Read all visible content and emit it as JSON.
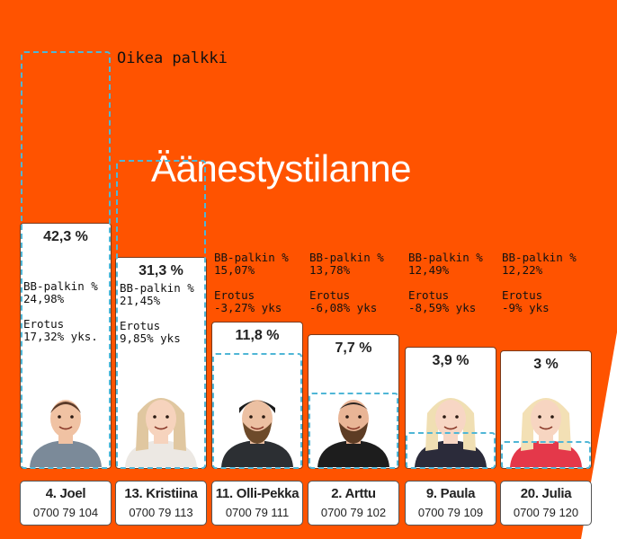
{
  "title": "Äänestystilanne",
  "annotation_label": "Oikea palkki",
  "ann_prefix": "BB-palkin %",
  "ann_diff": "Erotus",
  "colors": {
    "background": "#ff5300",
    "bar": "#ffffff",
    "dashed": "#4fb6d6"
  },
  "chart_data": {
    "type": "bar",
    "categories": [
      "4. Joel",
      "13. Kristiina",
      "11. Olli-Pekka",
      "2. Arttu",
      "9. Paula",
      "20. Julia"
    ],
    "series": [
      {
        "values": [
          42.3,
          31.3,
          11.8,
          7.7,
          3.9,
          3.0
        ]
      },
      {
        "name": "Oikea palkki",
        "values": [
          24.98,
          21.45,
          15.07,
          13.78,
          12.49,
          12.22
        ]
      }
    ],
    "ylim": [
      0,
      42.3
    ],
    "labels": [
      "42,3 %",
      "31,3 %",
      "11,8 %",
      "7,7 %",
      "3,9 %",
      "3 %"
    ]
  },
  "contestants": [
    {
      "name": "4. Joel",
      "phone": "0700 79 104",
      "pct": "42,3 %",
      "bb": "24,98%",
      "diff": "17,32% yks."
    },
    {
      "name": "13. Kristiina",
      "phone": "0700 79 113",
      "pct": "31,3 %",
      "bb": "21,45%",
      "diff": "9,85% yks"
    },
    {
      "name": "11. Olli-Pekka",
      "phone": "0700 79 111",
      "pct": "11,8 %",
      "bb": "15,07%",
      "diff": "-3,27% yks"
    },
    {
      "name": "2. Arttu",
      "phone": "0700 79 102",
      "pct": "7,7 %",
      "bb": "13,78%",
      "diff": "-6,08% yks"
    },
    {
      "name": "9. Paula",
      "phone": "0700 79 109",
      "pct": "3,9 %",
      "bb": "12,49%",
      "diff": "-8,59% yks"
    },
    {
      "name": "20. Julia",
      "phone": "0700 79 120",
      "pct": "3 %",
      "bb": "12,22%",
      "diff": "-9% yks"
    }
  ]
}
